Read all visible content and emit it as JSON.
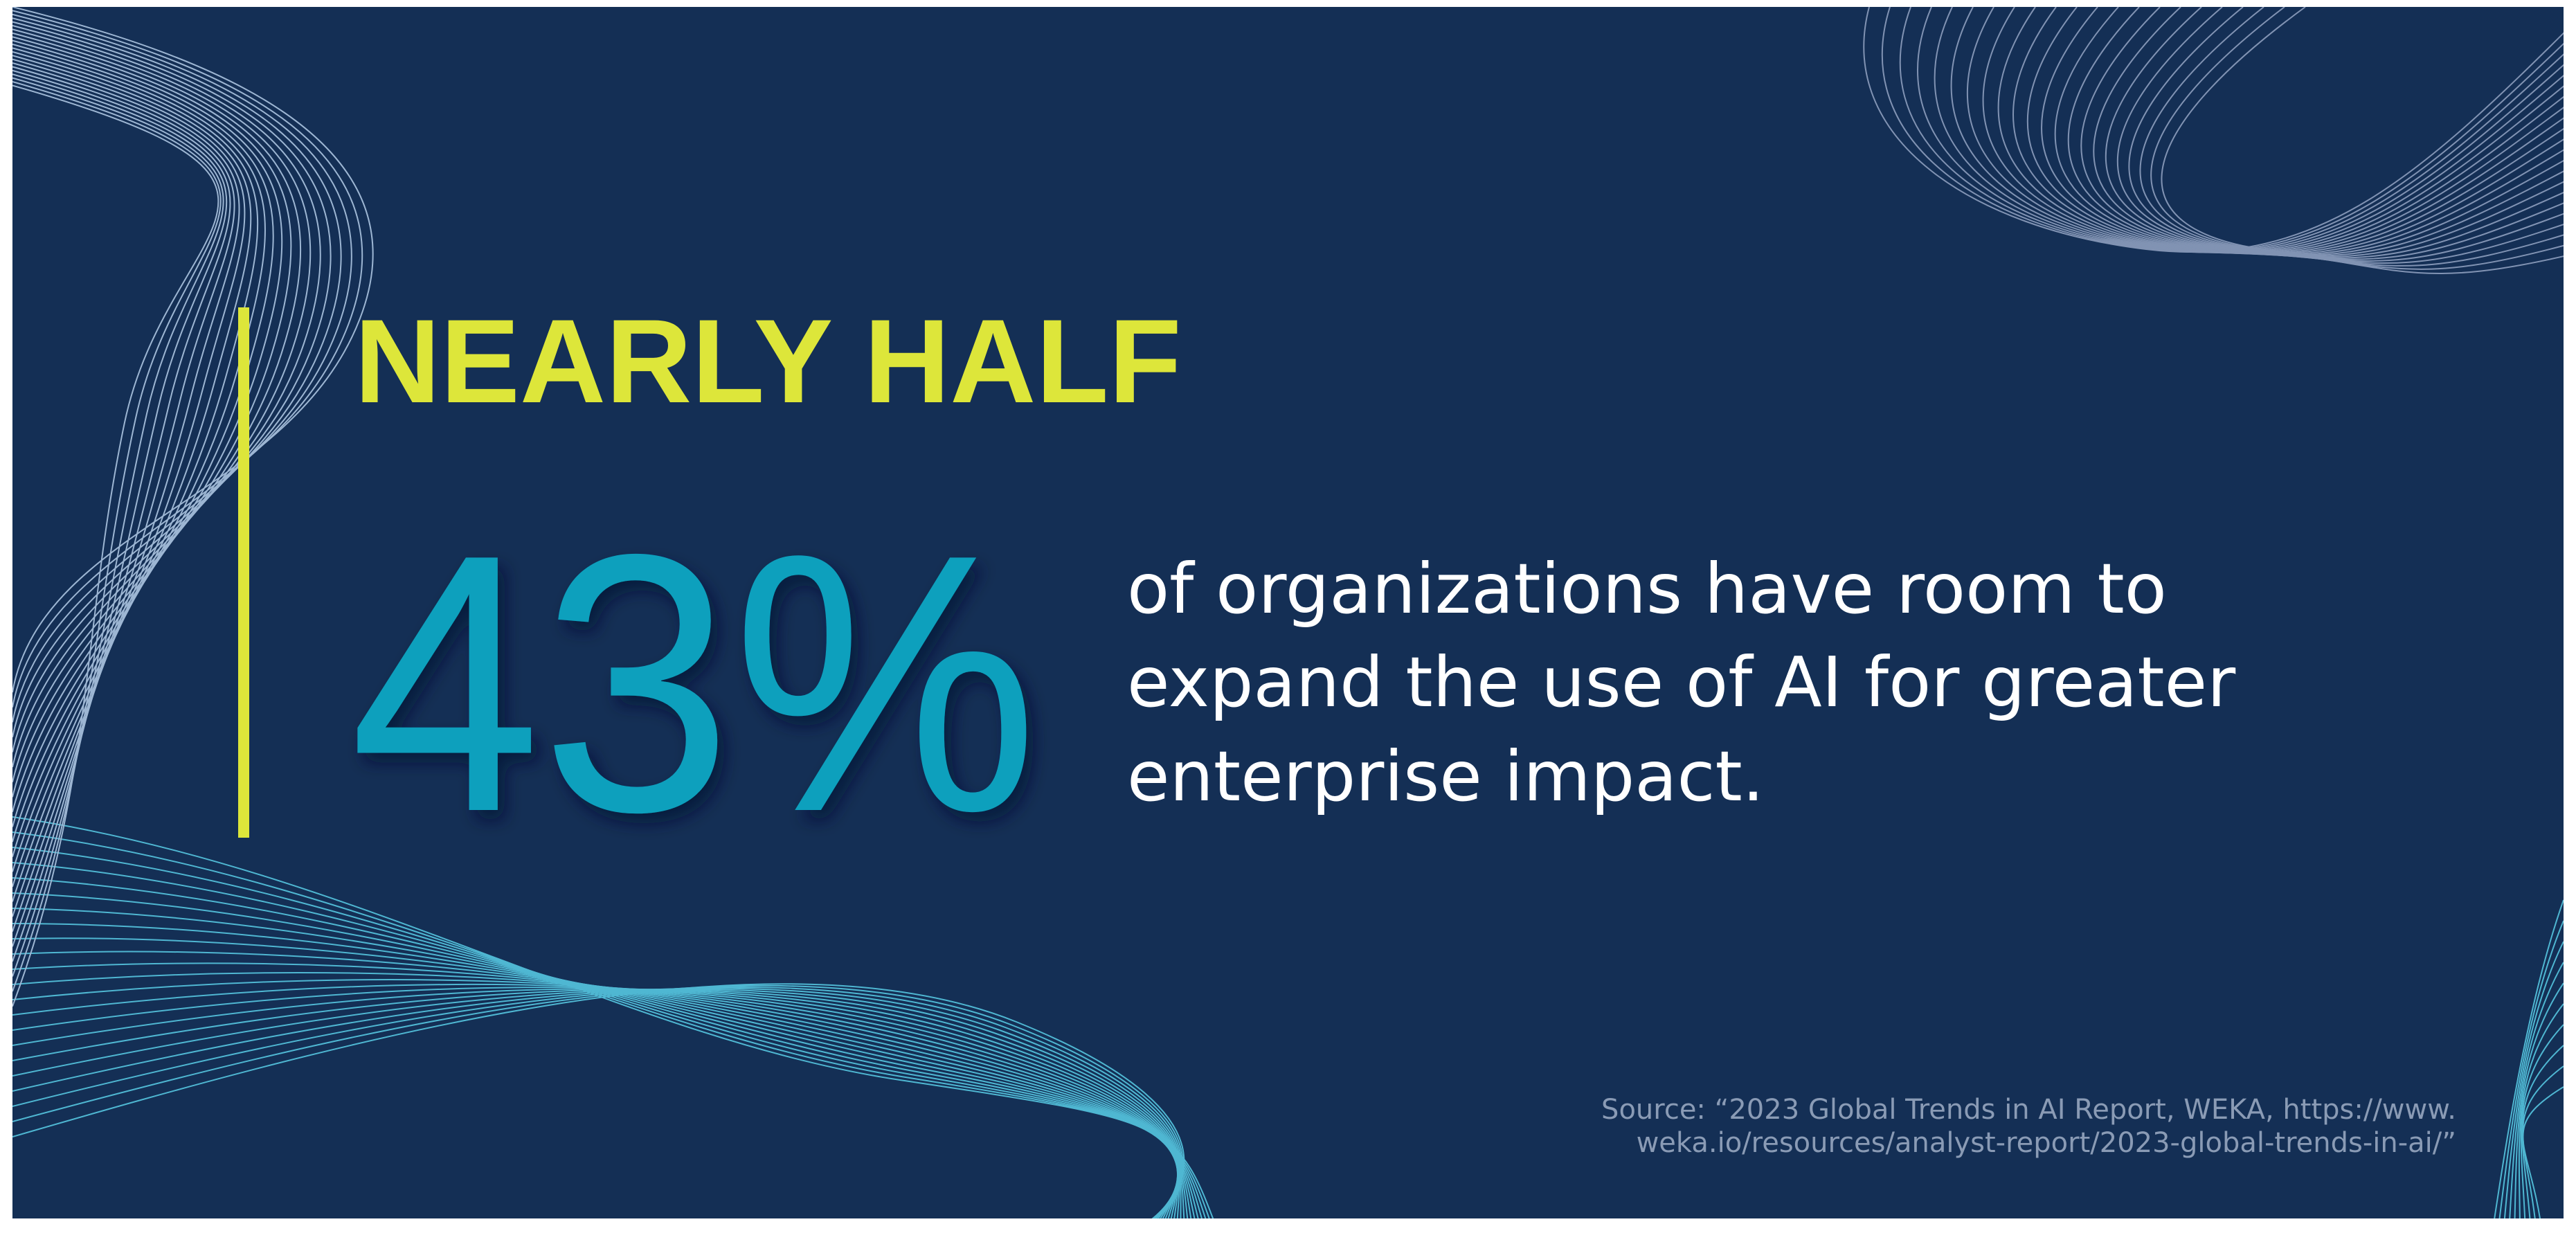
{
  "headline": "NEARLY HALF",
  "stat": "43%",
  "description": [
    "of organizations have room to",
    "expand the use of AI for greater",
    "enterprise impact."
  ],
  "source": [
    "Source: “2023 Global Trends in AI Report, WEKA, https://www.",
    "weka.io/resources/analyst-report/2023-global-trends-in-ai/”"
  ]
}
